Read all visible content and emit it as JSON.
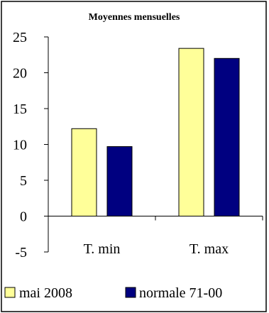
{
  "chart_data": {
    "type": "bar",
    "title": "Moyennes mensuelles",
    "xlabel": "",
    "ylabel": "",
    "categories": [
      "T. min",
      "T. max"
    ],
    "series": [
      {
        "name": "mai 2008",
        "values": [
          12.2,
          23.4
        ],
        "color": "#ffff99"
      },
      {
        "name": "normale 71-00",
        "values": [
          9.7,
          22.0
        ],
        "color": "#000080"
      }
    ],
    "ylim": [
      -5,
      25
    ],
    "yticks": [
      -5,
      0,
      5,
      10,
      15,
      20,
      25
    ],
    "grid": false,
    "legend_position": "bottom",
    "frame_color": "#000000",
    "background": "#ffffff"
  }
}
